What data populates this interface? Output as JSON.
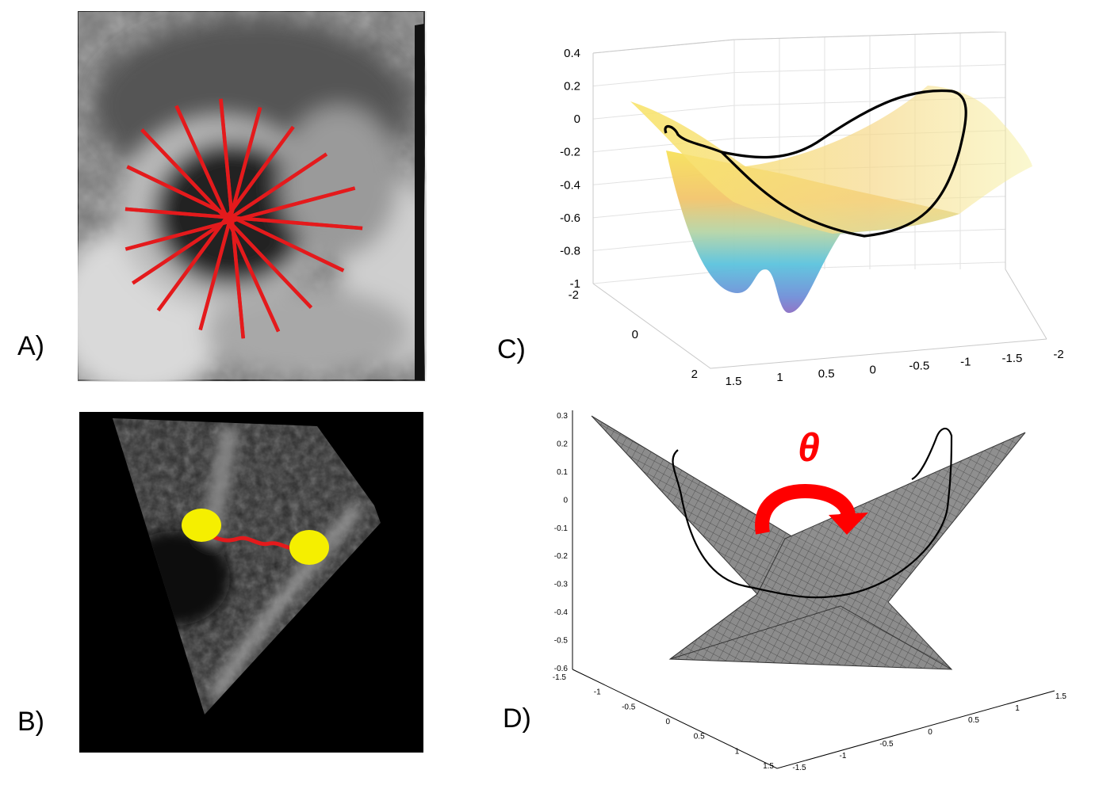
{
  "figure": {
    "panels": [
      {
        "id": "A",
        "label": "A)",
        "kind": "ultrasound-short-axis",
        "spoke_count": 18,
        "spoke_color": "#e41a1c"
      },
      {
        "id": "B",
        "label": "B)",
        "kind": "ultrasound-long-axis",
        "marker_color": "#f5ef00",
        "curve_color": "#e41a1c"
      },
      {
        "id": "C",
        "label": "C)",
        "kind": "3d-surface-colormap"
      },
      {
        "id": "D",
        "label": "D)",
        "kind": "3d-intersecting-planes",
        "angle_symbol": "θ",
        "arrow_color": "#ff0000"
      }
    ]
  },
  "chart_data": [
    {
      "type": "surface",
      "panel": "C",
      "zlim": [
        -1,
        0.4
      ],
      "z_ticks": [
        "0.4",
        "0.2",
        "0",
        "-0.2",
        "-0.4",
        "-0.6",
        "-0.8",
        "-1"
      ],
      "y_ticks": [
        "-2",
        "0",
        "2"
      ],
      "x_ticks": [
        "1.5",
        "1",
        "0.5",
        "0",
        "-0.5",
        "-1",
        "-1.5",
        "-2"
      ],
      "colormap": "parula"
    },
    {
      "type": "surface",
      "panel": "D",
      "zlim": [
        -0.6,
        0.3
      ],
      "z_ticks": [
        "0.3",
        "0.2",
        "0.1",
        "0",
        "-0.1",
        "-0.2",
        "-0.3",
        "-0.4",
        "-0.5",
        "-0.6"
      ],
      "y_ticks": [
        "-1.5",
        "-1",
        "-0.5",
        "0",
        "0.5",
        "1",
        "1.5"
      ],
      "x_ticks": [
        "-1.5",
        "-1",
        "-0.5",
        "0",
        "0.5",
        "1",
        "1.5"
      ],
      "annotation": "θ"
    }
  ],
  "colors": {
    "red": "#e41a1c",
    "yellow": "#f5ef00",
    "plane_gray": "#8c8c8c"
  }
}
